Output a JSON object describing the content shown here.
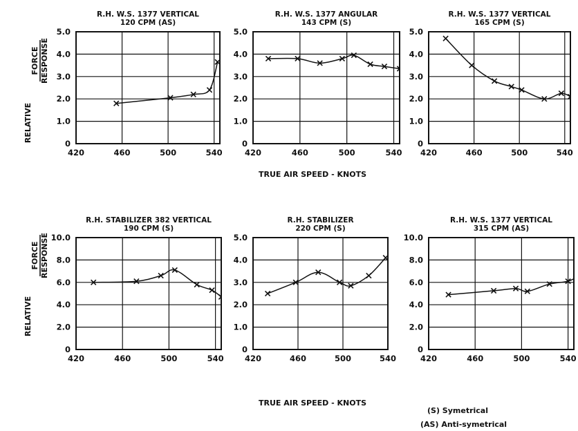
{
  "figure": {
    "xaxis_label": "TRUE AIR SPEED - KNOTS",
    "yaxis_label_prefix": "RELATIVE",
    "yaxis_label_num": "FORCE",
    "yaxis_label_den": "RESPONSE",
    "legend": [
      "(S) Symetrical",
      "(AS) Anti-symetrical"
    ]
  },
  "chart_data": [
    {
      "type": "line",
      "title": [
        "R.H. W.S. 1377 VERTICAL",
        "120 CPM (AS)"
      ],
      "xlim": [
        420,
        545
      ],
      "ylim": [
        0,
        5
      ],
      "xticks": [
        420,
        460,
        500,
        540
      ],
      "yticks": [
        0,
        1,
        2,
        3,
        4,
        5
      ],
      "ytick_labels": [
        "0",
        "1.0",
        "2.0",
        "3.0",
        "4.0",
        "5.0"
      ],
      "grid": true,
      "series": [
        {
          "marker": "x",
          "x": [
            455,
            502,
            522,
            536,
            543
          ],
          "y": [
            1.8,
            2.05,
            2.2,
            2.4,
            3.65
          ]
        }
      ]
    },
    {
      "type": "line",
      "title": [
        "R.H. W.S. 1377 ANGULAR",
        "143 CPM (S)"
      ],
      "xlim": [
        420,
        545
      ],
      "ylim": [
        0,
        5
      ],
      "xticks": [
        420,
        460,
        500,
        540
      ],
      "yticks": [
        0,
        1,
        2,
        3,
        4,
        5
      ],
      "ytick_labels": [
        "0",
        "1.0",
        "2.0",
        "3.0",
        "4.0",
        "5.0"
      ],
      "grid": true,
      "series": [
        {
          "marker": "x",
          "x": [
            433,
            458,
            477,
            496,
            506,
            520,
            532,
            545
          ],
          "y": [
            3.8,
            3.8,
            3.6,
            3.8,
            3.95,
            3.55,
            3.45,
            3.35
          ]
        }
      ]
    },
    {
      "type": "line",
      "title": [
        "R.H. W.S. 1377 VERTICAL",
        "165 CPM (S)"
      ],
      "xlim": [
        420,
        545
      ],
      "ylim": [
        0,
        5
      ],
      "xticks": [
        420,
        460,
        500,
        540
      ],
      "yticks": [
        0,
        1,
        2,
        3,
        4,
        5
      ],
      "ytick_labels": [
        "0",
        "1.0",
        "2.0",
        "3.0",
        "4.0",
        "5.0"
      ],
      "grid": true,
      "series": [
        {
          "marker": "x",
          "x": [
            435,
            458,
            478,
            493,
            502,
            522,
            537,
            545
          ],
          "y": [
            4.7,
            3.5,
            2.8,
            2.55,
            2.4,
            2.0,
            2.25,
            2.1
          ]
        }
      ]
    },
    {
      "type": "line",
      "title": [
        "R.H. STABILIZER 382 VERTICAL",
        "190 CPM (S)"
      ],
      "xlim": [
        420,
        545
      ],
      "ylim": [
        0,
        10
      ],
      "xticks": [
        420,
        460,
        500,
        540
      ],
      "yticks": [
        0,
        2,
        4,
        6,
        8,
        10
      ],
      "ytick_labels": [
        "0",
        "2.0",
        "4.0",
        "6.0",
        "8.0",
        "10.0"
      ],
      "grid": true,
      "series": [
        {
          "marker": "x",
          "x": [
            435,
            472,
            493,
            505,
            524,
            537,
            545
          ],
          "y": [
            6.0,
            6.1,
            6.6,
            7.1,
            5.8,
            5.3,
            4.7
          ]
        }
      ]
    },
    {
      "type": "line",
      "title": [
        "R.H. STABILIZER",
        "220 CPM (S)"
      ],
      "xlim": [
        420,
        540
      ],
      "ylim": [
        0,
        5
      ],
      "xticks": [
        420,
        460,
        500,
        540
      ],
      "yticks": [
        0,
        1,
        2,
        3,
        4,
        5
      ],
      "ytick_labels": [
        "0",
        "1.0",
        "2.0",
        "3.0",
        "4.0",
        "5.0"
      ],
      "grid": true,
      "series": [
        {
          "marker": "x",
          "x": [
            433,
            458,
            478,
            497,
            507,
            523,
            538
          ],
          "y": [
            2.5,
            3.0,
            3.45,
            3.0,
            2.85,
            3.3,
            4.1
          ]
        }
      ]
    },
    {
      "type": "line",
      "title": [
        "R.H. W.S. 1377 VERTICAL",
        "315 CPM (AS)"
      ],
      "xlim": [
        420,
        545
      ],
      "ylim": [
        0,
        10
      ],
      "xticks": [
        420,
        460,
        500,
        540
      ],
      "yticks": [
        0,
        2,
        4,
        6,
        8,
        10
      ],
      "ytick_labels": [
        "0",
        "2.0",
        "4.0",
        "6.0",
        "8.0",
        "10.0"
      ],
      "grid": true,
      "series": [
        {
          "marker": "x",
          "x": [
            437,
            476,
            495,
            505,
            524,
            540,
            548
          ],
          "y": [
            4.9,
            5.25,
            5.45,
            5.2,
            5.85,
            6.1,
            6.5
          ]
        }
      ]
    }
  ]
}
